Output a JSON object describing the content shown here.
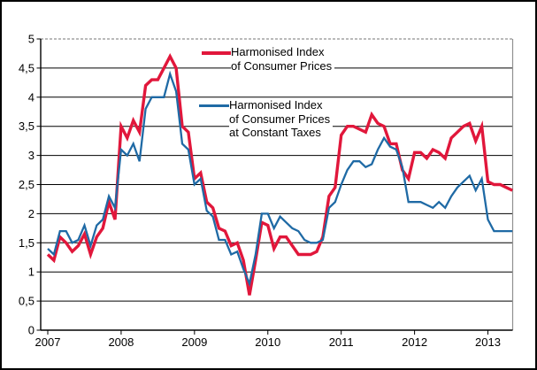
{
  "figure": {
    "background_color": "#ffffff",
    "border_color": "#000000",
    "title": ""
  },
  "chart_data": {
    "type": "line",
    "title": "",
    "xlabel": "",
    "ylabel": "",
    "ylim": [
      0,
      5
    ],
    "y_tick_step": 0.5,
    "y_tick_labels": [
      "0",
      "0,5",
      "1",
      "1,5",
      "2",
      "2,5",
      "3",
      "3,5",
      "4",
      "4,5",
      "5"
    ],
    "x_tick_labels": [
      "2007",
      "2008",
      "2009",
      "2010",
      "2011",
      "2012",
      "2013"
    ],
    "x_tick_month_indices": [
      0,
      12,
      24,
      36,
      48,
      60,
      72
    ],
    "grid": "horizontal",
    "legend_position": "top-center-inside",
    "months": [
      "2007-01",
      "2007-02",
      "2007-03",
      "2007-04",
      "2007-05",
      "2007-06",
      "2007-07",
      "2007-08",
      "2007-09",
      "2007-10",
      "2007-11",
      "2007-12",
      "2008-01",
      "2008-02",
      "2008-03",
      "2008-04",
      "2008-05",
      "2008-06",
      "2008-07",
      "2008-08",
      "2008-09",
      "2008-10",
      "2008-11",
      "2008-12",
      "2009-01",
      "2009-02",
      "2009-03",
      "2009-04",
      "2009-05",
      "2009-06",
      "2009-07",
      "2009-08",
      "2009-09",
      "2009-10",
      "2009-11",
      "2009-12",
      "2010-01",
      "2010-02",
      "2010-03",
      "2010-04",
      "2010-05",
      "2010-06",
      "2010-07",
      "2010-08",
      "2010-09",
      "2010-10",
      "2010-11",
      "2010-12",
      "2011-01",
      "2011-02",
      "2011-03",
      "2011-04",
      "2011-05",
      "2011-06",
      "2011-07",
      "2011-08",
      "2011-09",
      "2011-10",
      "2011-11",
      "2011-12",
      "2012-01",
      "2012-02",
      "2012-03",
      "2012-04",
      "2012-05",
      "2012-06",
      "2012-07",
      "2012-08",
      "2012-09",
      "2012-10",
      "2012-11",
      "2012-12",
      "2013-01",
      "2013-02",
      "2013-03",
      "2013-04",
      "2013-05"
    ],
    "series": [
      {
        "id": "hicp",
        "name": "Harmonised Index of Consumer Prices",
        "color": "#e1173b",
        "line_width": 3.4,
        "values": [
          1.3,
          1.2,
          1.6,
          1.5,
          1.35,
          1.45,
          1.65,
          1.3,
          1.6,
          1.75,
          2.2,
          1.9,
          3.5,
          3.3,
          3.6,
          3.4,
          4.2,
          4.3,
          4.3,
          4.5,
          4.7,
          4.5,
          3.5,
          3.4,
          2.6,
          2.7,
          2.2,
          2.1,
          1.75,
          1.7,
          1.45,
          1.5,
          1.2,
          0.6,
          1.2,
          1.85,
          1.8,
          1.4,
          1.6,
          1.6,
          1.45,
          1.3,
          1.3,
          1.3,
          1.35,
          1.6,
          2.3,
          2.45,
          3.35,
          3.5,
          3.5,
          3.45,
          3.4,
          3.7,
          3.55,
          3.5,
          3.2,
          3.2,
          2.75,
          2.6,
          3.05,
          3.05,
          2.95,
          3.1,
          3.05,
          2.95,
          3.3,
          3.4,
          3.5,
          3.55,
          3.25,
          3.5,
          2.55,
          2.5,
          2.5,
          2.45,
          2.4
        ]
      },
      {
        "id": "hicp_ct",
        "name": "Harmonised Index of Consumer Prices at Constant Taxes",
        "color": "#1f6aa5",
        "line_width": 2.3,
        "values": [
          1.4,
          1.3,
          1.7,
          1.7,
          1.5,
          1.55,
          1.8,
          1.45,
          1.8,
          1.9,
          2.3,
          2.1,
          3.1,
          3.0,
          3.2,
          2.9,
          3.8,
          4.0,
          4.0,
          4.0,
          4.4,
          4.1,
          3.2,
          3.1,
          2.5,
          2.6,
          2.05,
          1.95,
          1.55,
          1.55,
          1.3,
          1.35,
          1.05,
          0.8,
          1.3,
          2.0,
          2.0,
          1.75,
          1.95,
          1.85,
          1.75,
          1.7,
          1.55,
          1.5,
          1.5,
          1.55,
          2.1,
          2.2,
          2.5,
          2.75,
          2.9,
          2.9,
          2.8,
          2.85,
          3.1,
          3.3,
          3.15,
          3.1,
          2.8,
          2.2,
          2.2,
          2.2,
          2.15,
          2.1,
          2.2,
          2.1,
          2.3,
          2.45,
          2.55,
          2.65,
          2.4,
          2.6,
          1.9,
          1.7,
          1.7,
          1.7,
          1.7
        ]
      }
    ],
    "legend_items": [
      {
        "series_id": "hicp",
        "lines": [
          "Harmonised Index",
          "of Consumer Prices"
        ]
      },
      {
        "series_id": "hicp_ct",
        "lines": [
          "Harmonised Index",
          "of Consumer Prices",
          "at Constant Taxes"
        ]
      }
    ]
  }
}
